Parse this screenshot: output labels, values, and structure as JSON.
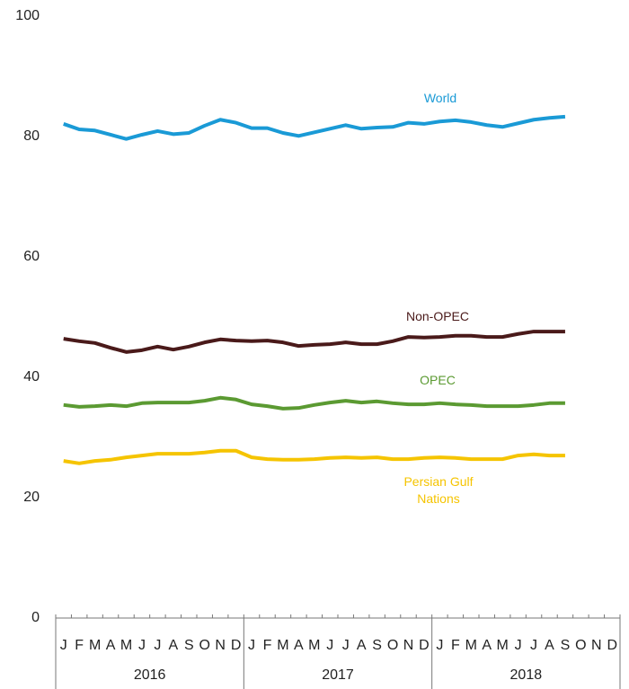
{
  "chart_data": {
    "type": "line",
    "categories": [
      "J",
      "F",
      "M",
      "A",
      "M",
      "J",
      "J",
      "A",
      "S",
      "O",
      "N",
      "D",
      "J",
      "F",
      "M",
      "A",
      "M",
      "J",
      "J",
      "A",
      "S",
      "O",
      "N",
      "D",
      "J",
      "F",
      "M",
      "A",
      "M",
      "J",
      "J",
      "A",
      "S",
      "O",
      "N",
      "D"
    ],
    "years": [
      "2016",
      "2017",
      "2018"
    ],
    "ylim": [
      0,
      100
    ],
    "yticks": [
      0,
      20,
      40,
      60,
      80,
      100
    ],
    "grid": false,
    "series": [
      {
        "name": "World",
        "color": "#1a9ad6",
        "values": [
          82.1,
          81.2,
          81.0,
          80.3,
          79.6,
          80.3,
          80.9,
          80.4,
          80.6,
          81.8,
          82.8,
          82.3,
          81.4,
          81.4,
          80.6,
          80.1,
          80.7,
          81.3,
          81.9,
          81.3,
          81.5,
          81.6,
          82.3,
          82.1,
          82.5,
          82.7,
          82.4,
          81.9,
          81.6,
          82.2,
          82.8,
          83.1,
          83.3,
          null,
          null,
          null
        ]
      },
      {
        "name": "Non-OPEC",
        "color": "#4a1a1a",
        "values": [
          46.4,
          46.0,
          45.7,
          44.9,
          44.2,
          44.5,
          45.1,
          44.6,
          45.1,
          45.8,
          46.3,
          46.1,
          46.0,
          46.1,
          45.8,
          45.2,
          45.4,
          45.5,
          45.8,
          45.5,
          45.5,
          46.0,
          46.7,
          46.6,
          46.7,
          46.9,
          46.9,
          46.7,
          46.7,
          47.2,
          47.6,
          47.6,
          47.6,
          null,
          null,
          null
        ]
      },
      {
        "name": "OPEC",
        "color": "#5b9a32",
        "values": [
          35.4,
          35.1,
          35.2,
          35.4,
          35.2,
          35.7,
          35.8,
          35.8,
          35.8,
          36.1,
          36.6,
          36.3,
          35.5,
          35.2,
          34.8,
          34.9,
          35.4,
          35.8,
          36.1,
          35.8,
          36.0,
          35.7,
          35.5,
          35.5,
          35.7,
          35.5,
          35.4,
          35.2,
          35.2,
          35.2,
          35.4,
          35.7,
          35.7,
          null,
          null,
          null
        ]
      },
      {
        "name": "Persian Gulf Nations",
        "color": "#f5c400",
        "values": [
          26.1,
          25.7,
          26.1,
          26.3,
          26.7,
          27.0,
          27.3,
          27.3,
          27.3,
          27.5,
          27.8,
          27.8,
          26.7,
          26.4,
          26.3,
          26.3,
          26.4,
          26.6,
          26.7,
          26.6,
          26.7,
          26.4,
          26.4,
          26.6,
          26.7,
          26.6,
          26.4,
          26.4,
          26.4,
          27.0,
          27.2,
          27.0,
          27.0,
          null,
          null,
          null
        ]
      }
    ]
  }
}
